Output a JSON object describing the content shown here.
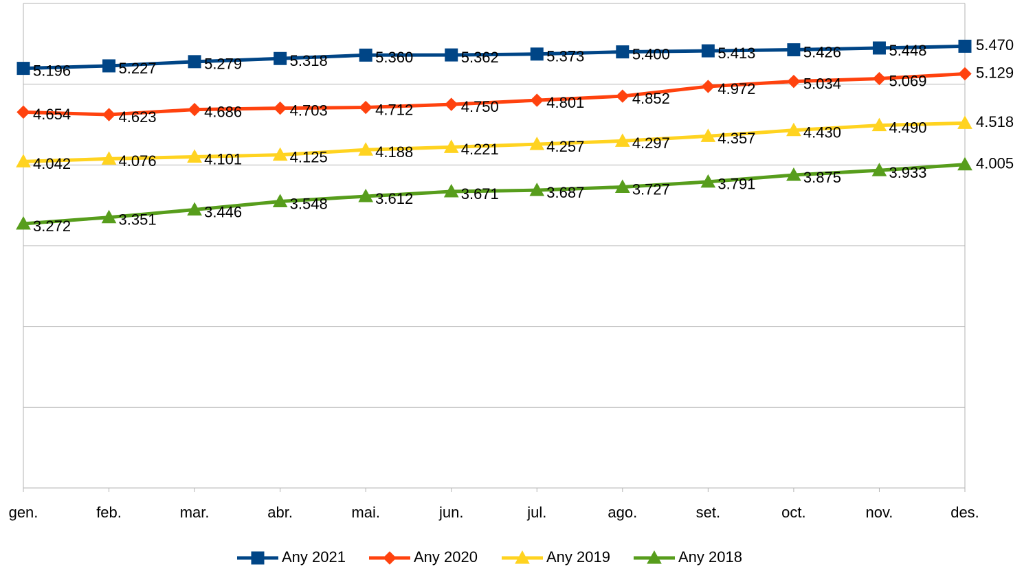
{
  "chart_data": {
    "type": "line",
    "categories": [
      "gen.",
      "feb.",
      "mar.",
      "abr.",
      "mai.",
      "jun.",
      "jul.",
      "ago.",
      "set.",
      "oct.",
      "nov.",
      "des."
    ],
    "ylim": [
      0,
      6000
    ],
    "yticks": [
      0,
      1000,
      2000,
      3000,
      4000,
      5000,
      6000
    ],
    "grid": true,
    "legend": "bottom",
    "series": [
      {
        "name": "Any 2021",
        "color": "#004586",
        "marker": "square",
        "values": [
          5196,
          5227,
          5279,
          5318,
          5360,
          5362,
          5373,
          5400,
          5413,
          5426,
          5448,
          5470
        ],
        "value_labels": [
          "5.196",
          "5.227",
          "5.279",
          "5.318",
          "5.360",
          "5.362",
          "5.373",
          "5.400",
          "5.413",
          "5.426",
          "5.448",
          "5.470"
        ]
      },
      {
        "name": "Any 2020",
        "color": "#ff420e",
        "marker": "diamond",
        "values": [
          4654,
          4623,
          4686,
          4703,
          4712,
          4750,
          4801,
          4852,
          4972,
          5034,
          5069,
          5129
        ],
        "value_labels": [
          "4.654",
          "4.623",
          "4.686",
          "4.703",
          "4.712",
          "4.750",
          "4.801",
          "4.852",
          "4.972",
          "5.034",
          "5.069",
          "5.129"
        ]
      },
      {
        "name": "Any 2019",
        "color": "#ffd320",
        "marker": "triangle",
        "values": [
          4042,
          4076,
          4101,
          4125,
          4188,
          4221,
          4257,
          4297,
          4357,
          4430,
          4490,
          4518
        ],
        "value_labels": [
          "4.042",
          "4.076",
          "4.101",
          "4.125",
          "4.188",
          "4.221",
          "4.257",
          "4.297",
          "4.357",
          "4.430",
          "4.490",
          "4.518"
        ]
      },
      {
        "name": "Any 2018",
        "color": "#579d1c",
        "marker": "triangle",
        "values": [
          3272,
          3351,
          3446,
          3548,
          3612,
          3671,
          3687,
          3727,
          3791,
          3875,
          3933,
          4005
        ],
        "value_labels": [
          "3.272",
          "3.351",
          "3.446",
          "3.548",
          "3.612",
          "3.671",
          "3.687",
          "3.727",
          "3.791",
          "3.875",
          "3.933",
          "4.005"
        ]
      }
    ]
  }
}
